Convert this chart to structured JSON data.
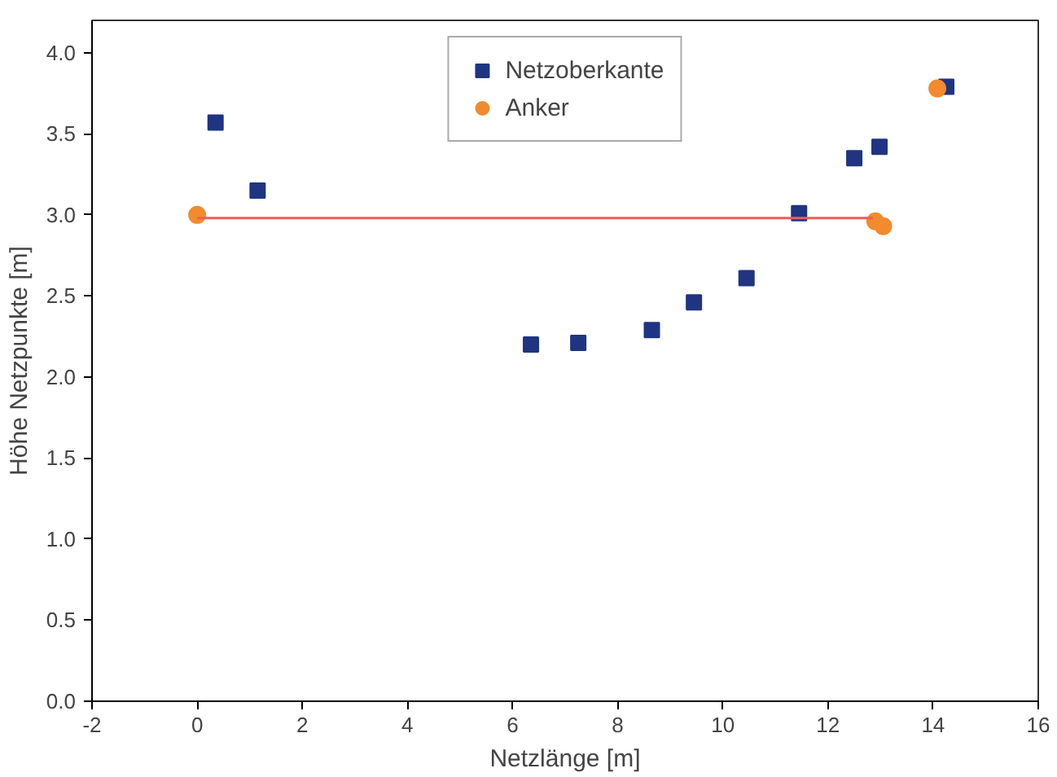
{
  "chart_data": {
    "type": "scatter",
    "xlabel": "Netzlänge [m]",
    "ylabel": "Höhe Netzpunkte [m]",
    "xlim": [
      -2,
      16
    ],
    "xticks": [
      -2,
      0,
      2,
      4,
      6,
      8,
      10,
      12,
      14,
      16
    ],
    "ylim": [
      0,
      4.2
    ],
    "yticks": [
      {
        "value": 0,
        "label": "0.0"
      },
      {
        "value": 0.5,
        "label": "0.5"
      },
      {
        "value": 1,
        "label": "1.0"
      },
      {
        "value": 1.5,
        "label": "1.5"
      },
      {
        "value": 2,
        "label": "2.0"
      },
      {
        "value": 2.5,
        "label": "2.5"
      },
      {
        "value": 3,
        "label": "3.0"
      },
      {
        "value": 3.5,
        "label": "3.5"
      },
      {
        "value": 4,
        "label": "4.0"
      }
    ],
    "legend": "top",
    "grid": false,
    "series": [
      {
        "name": "Netzoberkante",
        "color": "#1f3582",
        "marker": "square",
        "x": [
          0.35,
          1.15,
          6.35,
          7.25,
          8.65,
          9.45,
          10.45,
          11.45,
          12.5,
          12.98,
          14.25
        ],
        "values": [
          3.57,
          3.15,
          2.2,
          2.21,
          2.29,
          2.46,
          2.61,
          3.01,
          3.35,
          3.42,
          3.79
        ]
      },
      {
        "name": "Anker",
        "color": "#f28a2e",
        "marker": "circle",
        "x": [
          0,
          12.9,
          13.05,
          14.08
        ],
        "values": [
          3.0,
          2.96,
          2.93,
          3.78
        ]
      },
      {
        "type": "line",
        "color": "#f05a5a",
        "marker": "none",
        "x": [
          0,
          12.85
        ],
        "values": [
          2.98,
          2.98
        ]
      }
    ]
  }
}
